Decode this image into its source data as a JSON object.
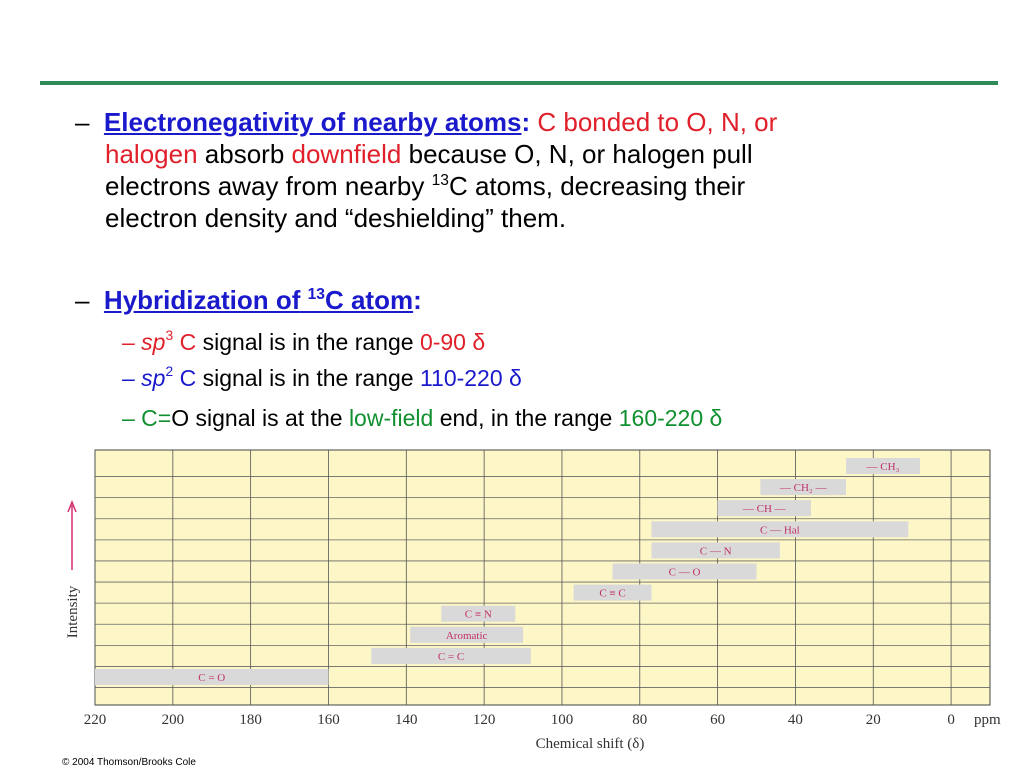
{
  "slide": {
    "dash": "–",
    "bullet1": [
      "Electronegativity of nearby atoms",
      ":",
      "C bonded to O, N, or",
      "halogen",
      "absorb",
      "downfield",
      "because O, N, or halogen pull",
      "electrons away from nearby",
      "13",
      "C atoms, decreasing their",
      "electron density and “deshielding” them."
    ],
    "bullet2": [
      "Hybridization of",
      "13",
      "C atom",
      ":"
    ],
    "sub1": [
      "– sp",
      "3",
      "C",
      "signal is in the range",
      "0-90 δ"
    ],
    "sub2": [
      "– sp",
      "2",
      "C",
      "signal is in the range",
      "110-220 δ"
    ],
    "sub3": [
      "– C=",
      "O signal is at the",
      "low-field",
      "end, in the range",
      "160-220 δ"
    ],
    "copyright": "© 2004 Thomson/Brooks Cole"
  },
  "chart_data": {
    "type": "range_bar",
    "categories": [
      "— CH₃",
      "— CH₂ —",
      "— CH —",
      "C — Hal",
      "C — N",
      "C — O",
      "C ≡ C",
      "C ≡ N",
      "Aromatic",
      "C = C",
      "C = O"
    ],
    "from": [
      27,
      49,
      60,
      77,
      77,
      87,
      97,
      131,
      139,
      149,
      220
    ],
    "to": [
      8,
      27,
      36,
      11,
      44,
      50,
      77,
      112,
      110,
      108,
      160
    ],
    "color": "#d9d9d9",
    "xlim": [
      220,
      -10
    ],
    "xticks": [
      220,
      200,
      180,
      160,
      140,
      120,
      100,
      80,
      60,
      40,
      20,
      0
    ],
    "x_unit": "ppm",
    "xlabel": "Chemical shift (δ)",
    "ylabel": "Intensity",
    "grid": true
  }
}
